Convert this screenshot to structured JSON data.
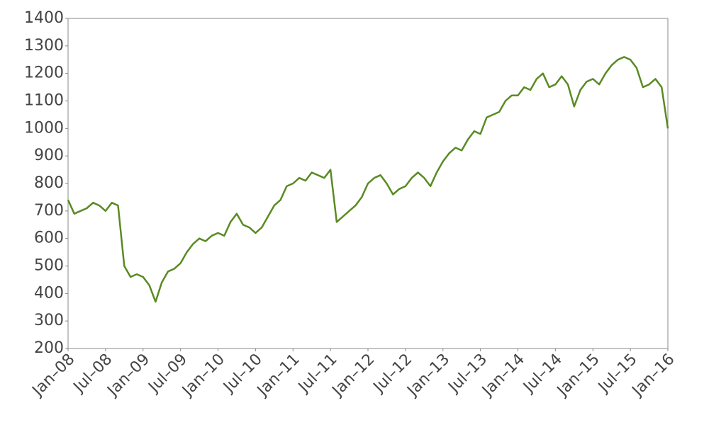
{
  "chart_data": {
    "type": "line",
    "x": [
      "2008-01",
      "2008-02",
      "2008-03",
      "2008-04",
      "2008-05",
      "2008-06",
      "2008-07",
      "2008-08",
      "2008-09",
      "2008-10",
      "2008-11",
      "2008-12",
      "2009-01",
      "2009-02",
      "2009-03",
      "2009-04",
      "2009-05",
      "2009-06",
      "2009-07",
      "2009-08",
      "2009-09",
      "2009-10",
      "2009-11",
      "2009-12",
      "2010-01",
      "2010-02",
      "2010-03",
      "2010-04",
      "2010-05",
      "2010-06",
      "2010-07",
      "2010-08",
      "2010-09",
      "2010-10",
      "2010-11",
      "2010-12",
      "2011-01",
      "2011-02",
      "2011-03",
      "2011-04",
      "2011-05",
      "2011-06",
      "2011-07",
      "2011-08",
      "2011-09",
      "2011-10",
      "2011-11",
      "2011-12",
      "2012-01",
      "2012-02",
      "2012-03",
      "2012-04",
      "2012-05",
      "2012-06",
      "2012-07",
      "2012-08",
      "2012-09",
      "2012-10",
      "2012-11",
      "2012-12",
      "2013-01",
      "2013-02",
      "2013-03",
      "2013-04",
      "2013-05",
      "2013-06",
      "2013-07",
      "2013-08",
      "2013-09",
      "2013-10",
      "2013-11",
      "2013-12",
      "2014-01",
      "2014-02",
      "2014-03",
      "2014-04",
      "2014-05",
      "2014-06",
      "2014-07",
      "2014-08",
      "2014-09",
      "2014-10",
      "2014-11",
      "2014-12",
      "2015-01",
      "2015-02",
      "2015-03",
      "2015-04",
      "2015-05",
      "2015-06",
      "2015-07",
      "2015-08",
      "2015-09",
      "2015-10",
      "2015-11",
      "2015-12",
      "2016-01"
    ],
    "series": [
      {
        "color": "#5a8a23",
        "values": [
          740,
          690,
          700,
          710,
          730,
          720,
          700,
          730,
          720,
          500,
          460,
          470,
          460,
          430,
          370,
          440,
          480,
          490,
          510,
          550,
          580,
          600,
          590,
          610,
          620,
          610,
          660,
          690,
          650,
          640,
          620,
          640,
          680,
          720,
          740,
          790,
          800,
          820,
          810,
          840,
          830,
          820,
          850,
          660,
          680,
          700,
          720,
          750,
          800,
          820,
          830,
          800,
          760,
          780,
          790,
          820,
          840,
          820,
          790,
          840,
          880,
          910,
          930,
          920,
          960,
          990,
          980,
          1040,
          1050,
          1060,
          1100,
          1120,
          1120,
          1150,
          1140,
          1180,
          1200,
          1150,
          1160,
          1190,
          1160,
          1080,
          1140,
          1170,
          1180,
          1160,
          1200,
          1230,
          1250,
          1260,
          1250,
          1220,
          1150,
          1160,
          1180,
          1150,
          1000
        ]
      }
    ],
    "xlim": [
      "2008-01",
      "2016-01"
    ],
    "xticks": [
      {
        "value": "2008-01",
        "label": "Jan–08"
      },
      {
        "value": "2008-07",
        "label": "Jul–08"
      },
      {
        "value": "2009-01",
        "label": "Jan–09"
      },
      {
        "value": "2009-07",
        "label": "Jul–09"
      },
      {
        "value": "2010-01",
        "label": "Jan–10"
      },
      {
        "value": "2010-07",
        "label": "Jul–10"
      },
      {
        "value": "2011-01",
        "label": "Jan–11"
      },
      {
        "value": "2011-07",
        "label": "Jul–11"
      },
      {
        "value": "2012-01",
        "label": "Jan–12"
      },
      {
        "value": "2012-07",
        "label": "Jul–12"
      },
      {
        "value": "2013-01",
        "label": "Jan–13"
      },
      {
        "value": "2013-07",
        "label": "Jul–13"
      },
      {
        "value": "2014-01",
        "label": "Jan–14"
      },
      {
        "value": "2014-07",
        "label": "Jul–14"
      },
      {
        "value": "2015-01",
        "label": "Jan–15"
      },
      {
        "value": "2015-07",
        "label": "Jul–15"
      },
      {
        "value": "2016-01",
        "label": "Jan–16"
      }
    ],
    "ylim": [
      200,
      1400
    ],
    "yticks": [
      200,
      300,
      400,
      500,
      600,
      700,
      800,
      900,
      1000,
      1100,
      1200,
      1300,
      1400
    ]
  }
}
